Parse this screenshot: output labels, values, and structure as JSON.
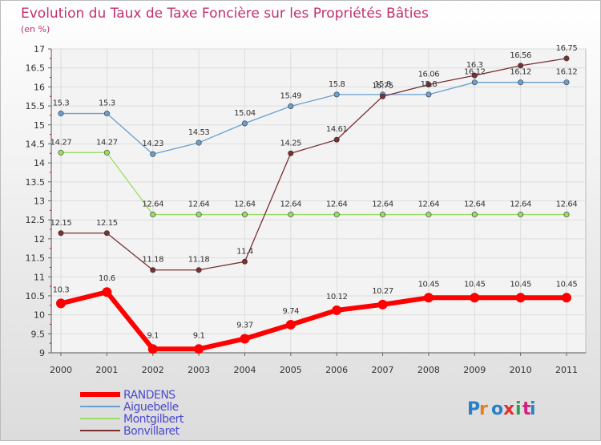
{
  "chart_data": {
    "type": "line",
    "title": "Evolution du Taux de Taxe Foncière sur les Propriétés Bâties",
    "subtitle": "(en %)",
    "xlabel": "",
    "ylabel": "",
    "x": [
      "2000",
      "2001",
      "2002",
      "2003",
      "2004",
      "2005",
      "2006",
      "2007",
      "2008",
      "2009",
      "2010",
      "2011"
    ],
    "ylim": [
      9,
      17
    ],
    "yticks": [
      "9",
      "9.5",
      "10",
      "10.5",
      "11",
      "11.5",
      "12",
      "12.5",
      "13",
      "13.5",
      "14",
      "14.5",
      "15",
      "15.5",
      "16",
      "16.5",
      "17"
    ],
    "grid": true,
    "legend_position": "bottom-left",
    "series": [
      {
        "name": "RANDENS",
        "color": "#ff0000",
        "values": [
          10.3,
          10.6,
          9.1,
          9.1,
          9.37,
          9.74,
          10.12,
          10.27,
          10.45,
          10.45,
          10.45,
          10.45
        ],
        "labels": [
          "10.3",
          "10.6",
          "9.1",
          "9.1",
          "9.37",
          "9.74",
          "10.12",
          "10.27",
          "10.45",
          "10.45",
          "10.45",
          "10.45"
        ]
      },
      {
        "name": "Aiguebelle",
        "color": "#6a9fcf",
        "values": [
          15.3,
          15.3,
          14.23,
          14.53,
          15.04,
          15.49,
          15.8,
          15.8,
          15.8,
          16.12,
          16.12,
          16.12
        ],
        "labels": [
          "15.3",
          "15.3",
          "14.23",
          "14.53",
          "15.04",
          "15.49",
          "15.8",
          "15.8",
          "15.8",
          "16.12",
          "16.12",
          "16.12"
        ]
      },
      {
        "name": "Montgilbert",
        "color": "#99dd66",
        "values": [
          14.27,
          14.27,
          12.64,
          12.64,
          12.64,
          12.64,
          12.64,
          12.64,
          12.64,
          12.64,
          12.64,
          12.64
        ],
        "labels": [
          "14.27",
          "14.27",
          "12.64",
          "12.64",
          "12.64",
          "12.64",
          "12.64",
          "12.64",
          "12.64",
          "12.64",
          "12.64",
          "12.64"
        ]
      },
      {
        "name": "Bonvillaret",
        "color": "#7a3030",
        "values": [
          12.15,
          12.15,
          11.18,
          11.18,
          11.4,
          14.25,
          14.61,
          15.75,
          16.06,
          16.3,
          16.56,
          16.75
        ],
        "labels": [
          "12.15",
          "12.15",
          "11.18",
          "11.18",
          "11.4",
          "14.25",
          "14.61",
          "15.75",
          "16.06",
          "16.3",
          "16.56",
          "16.75"
        ]
      }
    ],
    "logo_text": "Proxiti"
  }
}
